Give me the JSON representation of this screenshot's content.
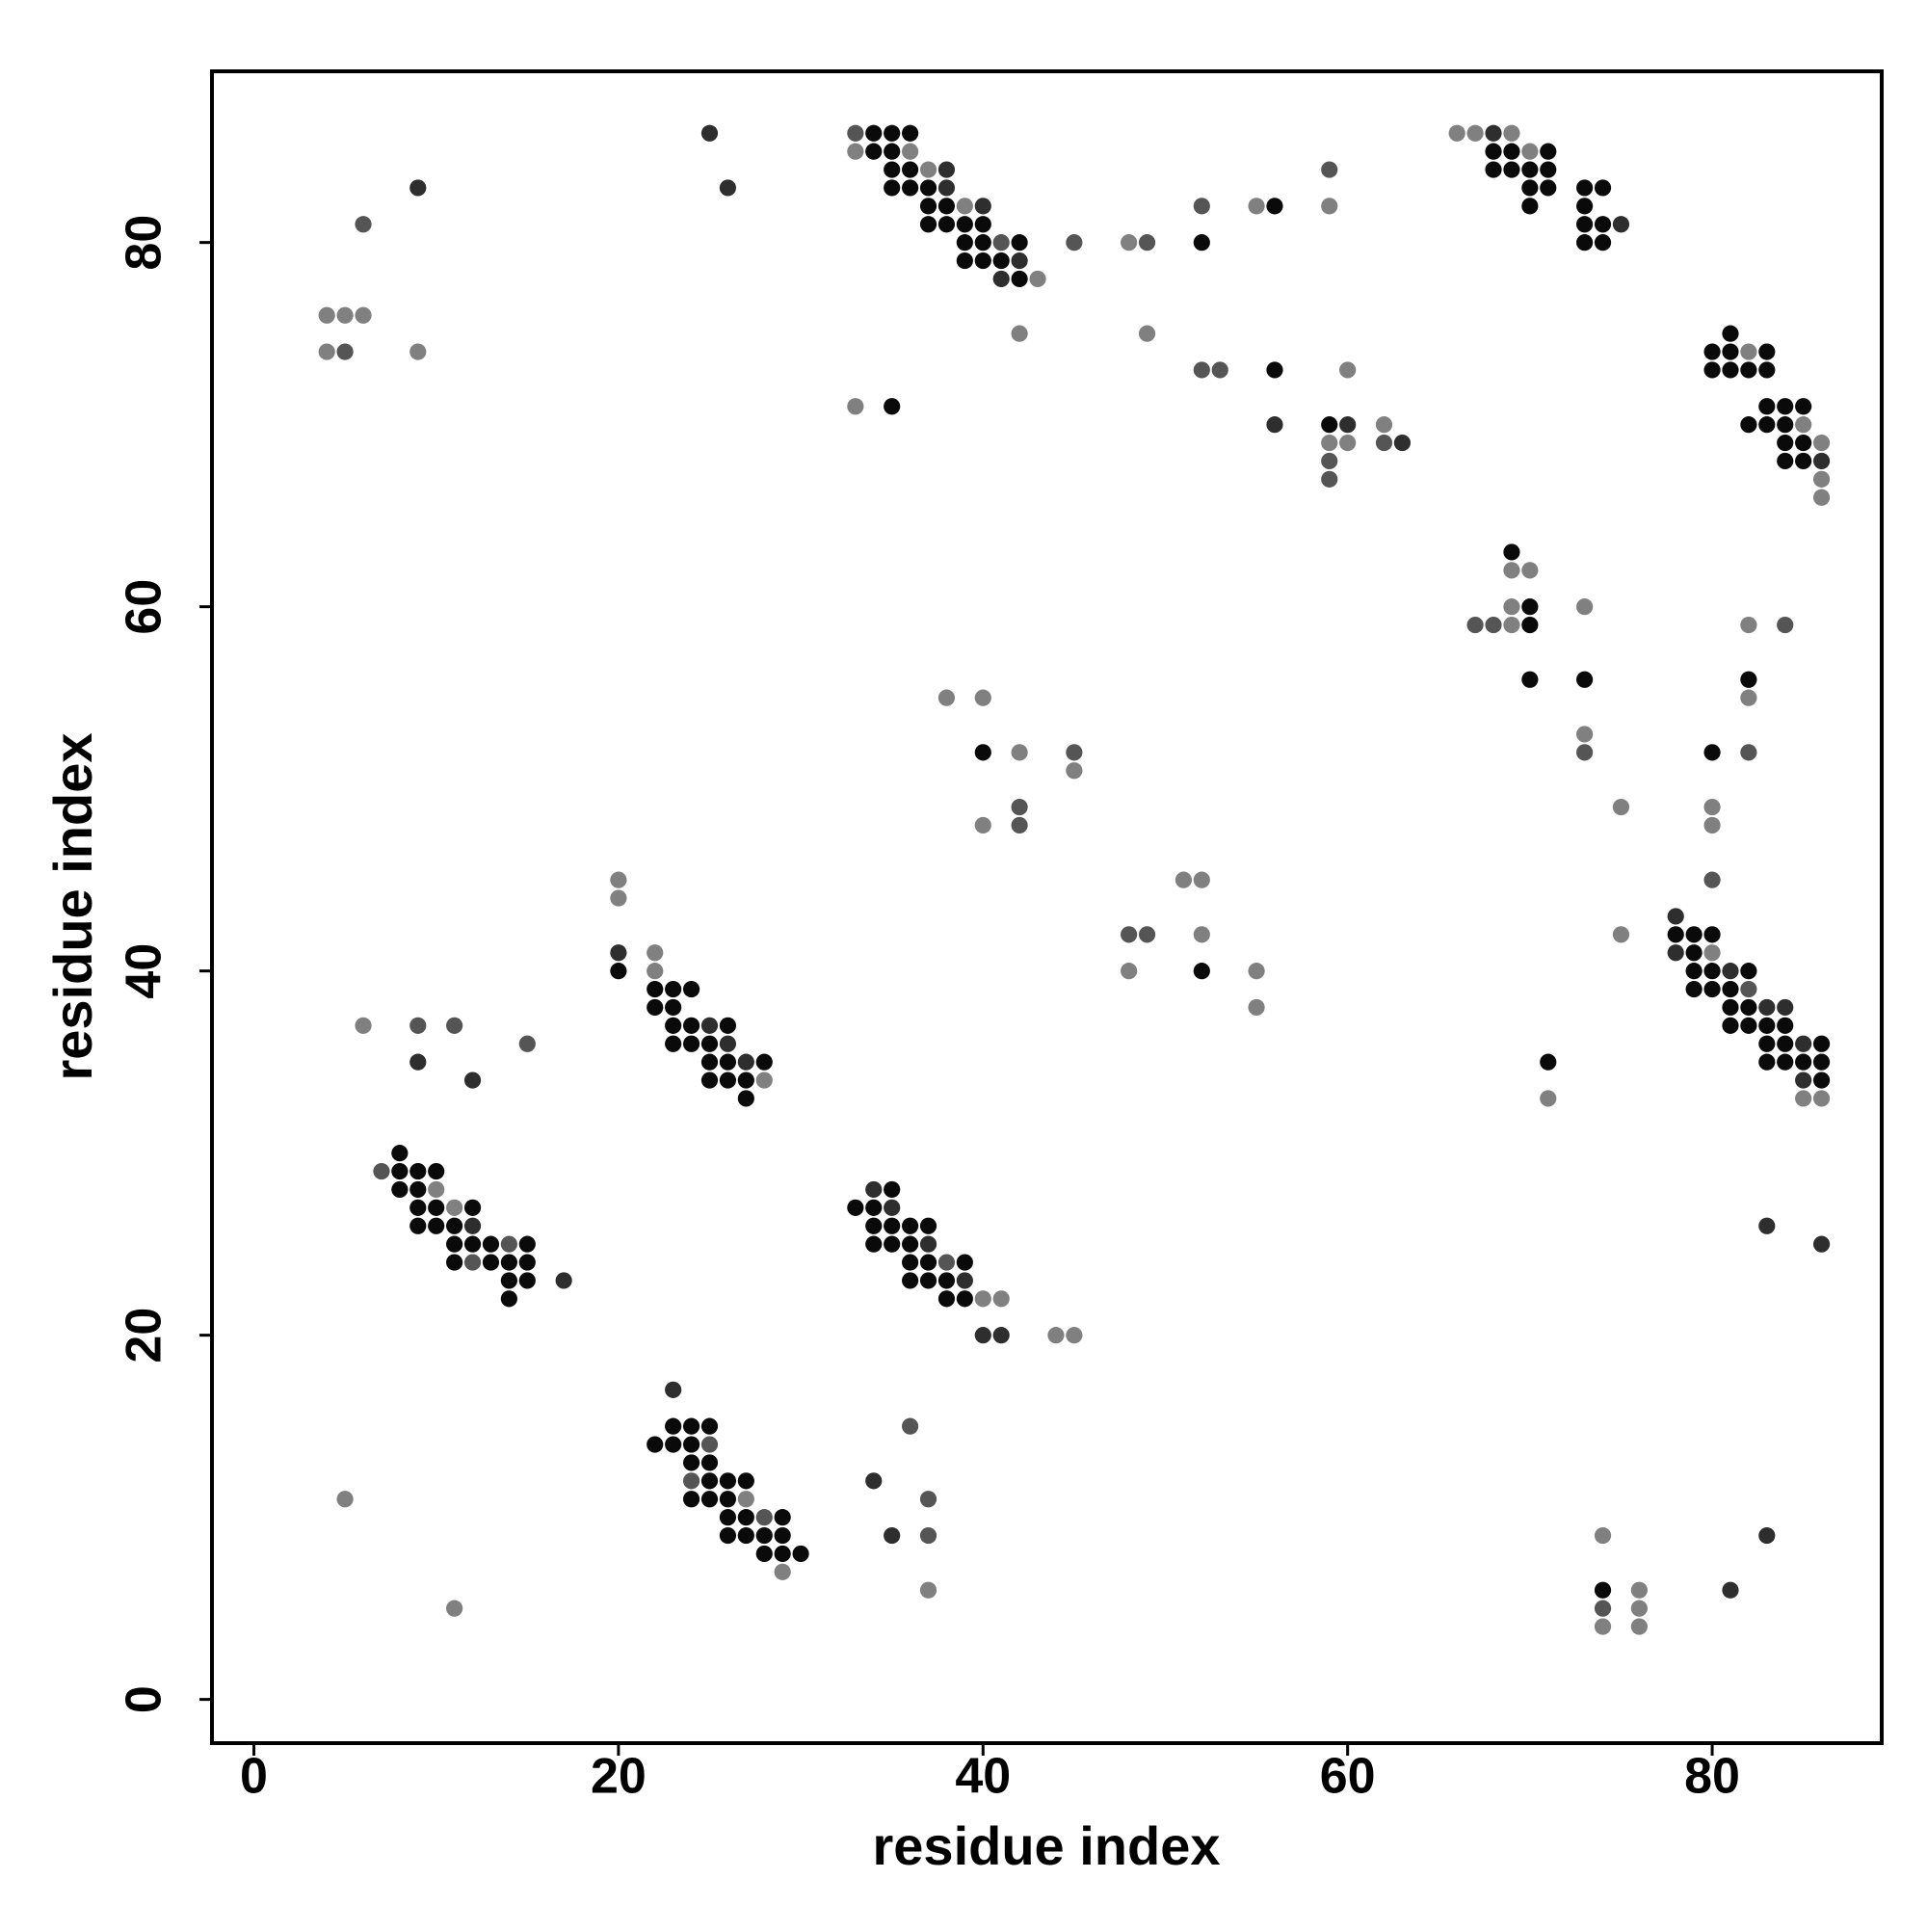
{
  "chart_data": {
    "type": "scatter",
    "xlabel": "residue index",
    "ylabel": "residue index",
    "xlim": [
      -2.3,
      89.3
    ],
    "ylim": [
      -2.4,
      89.4
    ],
    "xticks": [
      0,
      20,
      40,
      60,
      80
    ],
    "yticks": [
      0,
      20,
      40,
      60,
      80
    ],
    "grid": false,
    "series": [
      {
        "color": "#0a0a0a",
        "x": [
          34,
          35,
          36,
          34,
          35,
          68,
          69,
          71,
          35,
          36,
          68,
          69,
          70,
          71,
          35,
          36,
          37,
          70,
          71,
          73,
          74,
          37,
          38,
          56,
          70,
          73,
          37,
          38,
          39,
          40,
          73,
          74,
          39,
          40,
          42,
          52,
          73,
          74,
          39,
          40,
          41,
          42,
          81,
          80,
          81,
          83,
          56,
          80,
          81,
          82,
          83,
          35,
          83,
          84,
          85,
          59,
          82,
          83,
          84,
          84,
          85,
          84,
          85,
          69,
          70,
          70,
          70,
          73,
          82,
          40,
          80,
          78,
          79,
          80,
          79,
          20,
          52,
          79,
          80,
          82,
          22,
          23,
          24,
          79,
          80,
          81,
          22,
          23,
          81,
          82,
          23,
          24,
          26,
          81,
          82,
          83,
          84,
          23,
          24,
          25,
          83,
          84,
          86,
          25,
          26,
          28,
          71,
          83,
          84,
          85,
          86,
          25,
          26,
          27,
          86,
          27,
          8,
          8,
          9,
          10,
          8,
          9,
          35,
          9,
          10,
          12,
          33,
          34,
          9,
          10,
          11,
          34,
          35,
          36,
          37,
          11,
          12,
          13,
          15,
          34,
          35,
          36,
          11,
          13,
          14,
          15,
          36,
          37,
          39,
          14,
          15,
          36,
          37,
          38,
          14,
          38,
          39,
          23,
          24,
          25,
          22,
          23,
          24,
          24,
          25,
          25,
          26,
          27,
          24,
          25,
          26,
          26,
          27,
          29,
          26,
          27,
          28,
          29,
          28,
          29,
          30,
          74
        ],
        "values": [
          86,
          86,
          86,
          85,
          85,
          85,
          85,
          85,
          84,
          84,
          84,
          84,
          84,
          84,
          83,
          83,
          83,
          83,
          83,
          83,
          83,
          82,
          82,
          82,
          82,
          82,
          81,
          81,
          81,
          81,
          81,
          81,
          80,
          80,
          80,
          80,
          80,
          80,
          79,
          79,
          79,
          78,
          75,
          74,
          74,
          74,
          73,
          73,
          73,
          73,
          73,
          71,
          71,
          71,
          71,
          70,
          70,
          70,
          70,
          69,
          69,
          68,
          68,
          63,
          60,
          59,
          56,
          56,
          56,
          52,
          52,
          42,
          42,
          42,
          41,
          40,
          40,
          40,
          40,
          40,
          39,
          39,
          39,
          39,
          39,
          39,
          38,
          38,
          38,
          38,
          37,
          37,
          37,
          37,
          37,
          37,
          37,
          36,
          36,
          36,
          36,
          36,
          36,
          35,
          35,
          35,
          35,
          35,
          35,
          35,
          35,
          34,
          34,
          34,
          34,
          33,
          30,
          29,
          29,
          29,
          28,
          28,
          28,
          27,
          27,
          27,
          27,
          27,
          26,
          26,
          26,
          26,
          26,
          26,
          26,
          25,
          25,
          25,
          25,
          25,
          25,
          25,
          24,
          24,
          24,
          24,
          24,
          24,
          24,
          23,
          23,
          23,
          23,
          23,
          22,
          22,
          22,
          15,
          15,
          15,
          14,
          14,
          14,
          13,
          13,
          12,
          12,
          12,
          11,
          11,
          11,
          10,
          10,
          10,
          9,
          9,
          9,
          9,
          8,
          8,
          8,
          6
        ]
      },
      {
        "color": "#2e2e2e",
        "x": [
          25,
          68,
          38,
          9,
          26,
          38,
          40,
          75,
          42,
          41,
          56,
          60,
          63,
          86,
          78,
          20,
          78,
          81,
          83,
          84,
          25,
          26,
          85,
          9,
          27,
          12,
          85,
          34,
          35,
          12,
          83,
          37,
          86,
          17,
          39,
          40,
          41,
          23,
          34,
          35,
          83,
          81
        ],
        "values": [
          86,
          86,
          84,
          83,
          83,
          83,
          82,
          81,
          79,
          78,
          70,
          70,
          69,
          68,
          43,
          41,
          41,
          40,
          38,
          38,
          37,
          36,
          36,
          35,
          35,
          34,
          34,
          28,
          27,
          26,
          26,
          25,
          25,
          23,
          23,
          20,
          20,
          17,
          12,
          9,
          9,
          6
        ]
      },
      {
        "color": "#555555",
        "x": [
          33,
          59,
          52,
          6,
          41,
          45,
          49,
          5,
          52,
          53,
          62,
          59,
          59,
          67,
          68,
          84,
          45,
          73,
          82,
          42,
          42,
          80,
          48,
          49,
          82,
          9,
          11,
          15,
          7,
          14,
          12,
          38,
          36,
          25,
          24,
          37,
          28,
          37,
          74
        ],
        "values": [
          86,
          84,
          82,
          81,
          80,
          80,
          80,
          74,
          73,
          73,
          69,
          68,
          67,
          59,
          59,
          59,
          52,
          52,
          52,
          49,
          48,
          45,
          42,
          42,
          39,
          37,
          37,
          36,
          29,
          25,
          24,
          24,
          15,
          14,
          12,
          11,
          10,
          9,
          5
        ]
      },
      {
        "color": "#808080",
        "x": [
          66,
          67,
          69,
          33,
          36,
          70,
          37,
          39,
          55,
          59,
          48,
          43,
          4,
          5,
          6,
          42,
          49,
          4,
          9,
          82,
          60,
          33,
          62,
          85,
          59,
          60,
          86,
          86,
          86,
          69,
          70,
          69,
          73,
          69,
          82,
          38,
          40,
          82,
          73,
          42,
          45,
          75,
          80,
          40,
          80,
          20,
          51,
          52,
          20,
          52,
          75,
          22,
          80,
          22,
          48,
          55,
          55,
          6,
          28,
          71,
          85,
          86,
          10,
          11,
          40,
          41,
          44,
          45,
          5,
          27,
          74,
          29,
          37,
          76,
          11,
          76,
          74,
          76
        ],
        "values": [
          86,
          86,
          86,
          85,
          85,
          85,
          84,
          82,
          82,
          82,
          80,
          78,
          76,
          76,
          76,
          75,
          75,
          74,
          74,
          74,
          73,
          71,
          70,
          70,
          69,
          69,
          69,
          67,
          66,
          62,
          62,
          60,
          60,
          59,
          59,
          55,
          55,
          55,
          53,
          52,
          51,
          49,
          49,
          48,
          48,
          45,
          45,
          45,
          44,
          42,
          42,
          41,
          41,
          40,
          40,
          40,
          38,
          37,
          34,
          33,
          33,
          33,
          28,
          27,
          22,
          22,
          20,
          20,
          11,
          11,
          9,
          7,
          6,
          6,
          5,
          5,
          4,
          4
        ]
      }
    ]
  }
}
